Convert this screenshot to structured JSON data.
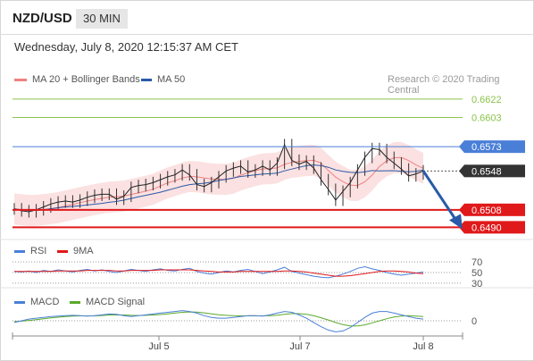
{
  "header": {
    "pair": "NZD/USD",
    "timeframe": "30 MIN",
    "datetime": "Wednesday, July 8, 2020 12:15:37 AM CET",
    "credit": "Research © 2020 Trading Central"
  },
  "legend": {
    "ma20_bb": "MA 20 + Bollinger Bands",
    "ma50": "MA 50",
    "rsi": "RSI",
    "rsi_ma": "9MA",
    "macd": "MACD",
    "macd_signal": "MACD Signal"
  },
  "colors": {
    "resistance": "#8bc34a",
    "pivot": "#4a7fd8",
    "support": "#e0191a",
    "last_price": "#333333",
    "ma20": "#f08080",
    "ma50": "#2a5aa8",
    "rsi": "#4a7fd8",
    "rsi_ma": "#e0191a",
    "macd": "#4a7fd8",
    "macd_signal": "#5aaa2a",
    "arrow": "#2a5aa8"
  },
  "chart_data": [
    {
      "type": "line",
      "title": "NZD/USD 30 MIN",
      "x_ticks": [
        "Jul 5",
        "Jul 7",
        "Jul 8"
      ],
      "ylim": [
        0.6483,
        0.6632
      ],
      "series": [
        {
          "name": "price",
          "values": [
            0.6509,
            0.6507,
            0.6506,
            0.6508,
            0.6511,
            0.6514,
            0.6516,
            0.6517,
            0.6516,
            0.6518,
            0.6521,
            0.6523,
            0.6524,
            0.6524,
            0.6519,
            0.6522,
            0.6531,
            0.6533,
            0.6534,
            0.6536,
            0.6539,
            0.6542,
            0.6544,
            0.6549,
            0.6544,
            0.6534,
            0.6532,
            0.6536,
            0.6542,
            0.6548,
            0.6551,
            0.6553,
            0.6547,
            0.6549,
            0.6553,
            0.6549,
            0.6556,
            0.6575,
            0.6559,
            0.6555,
            0.6558,
            0.6551,
            0.6539,
            0.6529,
            0.6518,
            0.6527,
            0.6536,
            0.6549,
            0.6562,
            0.6571,
            0.657,
            0.6562,
            0.6556,
            0.655,
            0.6543,
            0.6545,
            0.6548
          ]
        }
      ],
      "levels": [
        {
          "label": "0.6622",
          "value": 0.6622,
          "kind": "resistance"
        },
        {
          "label": "0.6603",
          "value": 0.6603,
          "kind": "resistance"
        },
        {
          "label": "0.6573",
          "value": 0.6573,
          "kind": "pivot"
        },
        {
          "label": "0.6548",
          "value": 0.6548,
          "kind": "last"
        },
        {
          "label": "0.6508",
          "value": 0.6508,
          "kind": "support"
        },
        {
          "label": "0.6490",
          "value": 0.649,
          "kind": "support"
        }
      ],
      "forecast_target": 0.649
    },
    {
      "type": "line",
      "title": "RSI",
      "ylim": [
        28,
        72
      ],
      "y_ticks": [
        "70",
        "50",
        "30"
      ],
      "series": [
        {
          "name": "RSI",
          "values": [
            52,
            51,
            53,
            50,
            54,
            52,
            55,
            53,
            51,
            54,
            56,
            53,
            55,
            52,
            50,
            53,
            56,
            54,
            52,
            55,
            57,
            54,
            53,
            56,
            58,
            52,
            49,
            47,
            50,
            53,
            51,
            54,
            56,
            52,
            48,
            51,
            55,
            60,
            52,
            49,
            46,
            43,
            41,
            40,
            43,
            47,
            52,
            58,
            61,
            57,
            54,
            50,
            47,
            45,
            47,
            49,
            51
          ]
        },
        {
          "name": "9MA",
          "values": [
            52,
            52,
            52,
            52,
            52,
            52,
            53,
            53,
            53,
            53,
            54,
            54,
            54,
            54,
            53,
            53,
            54,
            54,
            54,
            54,
            55,
            55,
            55,
            55,
            55,
            54,
            53,
            52,
            51,
            51,
            51,
            52,
            52,
            52,
            52,
            52,
            52,
            53,
            53,
            52,
            51,
            49,
            47,
            45,
            43,
            43,
            44,
            46,
            48,
            50,
            52,
            53,
            53,
            52,
            51,
            49,
            48
          ]
        }
      ]
    },
    {
      "type": "line",
      "title": "MACD",
      "ylim": [
        -1,
        1
      ],
      "y_ticks": [
        "0"
      ],
      "series": [
        {
          "name": "MACD",
          "values": [
            -0.1,
            0.0,
            0.1,
            0.15,
            0.2,
            0.25,
            0.28,
            0.3,
            0.32,
            0.3,
            0.28,
            0.3,
            0.35,
            0.4,
            0.38,
            0.3,
            0.25,
            0.3,
            0.35,
            0.4,
            0.45,
            0.5,
            0.55,
            0.6,
            0.55,
            0.45,
            0.3,
            0.2,
            0.15,
            0.15,
            0.2,
            0.25,
            0.3,
            0.3,
            0.28,
            0.35,
            0.45,
            0.55,
            0.5,
            0.35,
            0.15,
            -0.1,
            -0.35,
            -0.55,
            -0.65,
            -0.6,
            -0.4,
            -0.1,
            0.2,
            0.45,
            0.55,
            0.55,
            0.45,
            0.35,
            0.25,
            0.15,
            0.1
          ]
        },
        {
          "name": "MACD Signal",
          "values": [
            -0.05,
            -0.02,
            0.02,
            0.07,
            0.12,
            0.17,
            0.21,
            0.25,
            0.28,
            0.29,
            0.29,
            0.29,
            0.31,
            0.34,
            0.35,
            0.34,
            0.32,
            0.31,
            0.32,
            0.34,
            0.37,
            0.41,
            0.45,
            0.5,
            0.52,
            0.51,
            0.47,
            0.41,
            0.36,
            0.32,
            0.3,
            0.29,
            0.29,
            0.29,
            0.29,
            0.3,
            0.33,
            0.38,
            0.42,
            0.42,
            0.38,
            0.3,
            0.18,
            0.05,
            -0.1,
            -0.22,
            -0.3,
            -0.3,
            -0.24,
            -0.12,
            0.0,
            0.12,
            0.22,
            0.28,
            0.3,
            0.28,
            0.25
          ]
        }
      ]
    }
  ]
}
